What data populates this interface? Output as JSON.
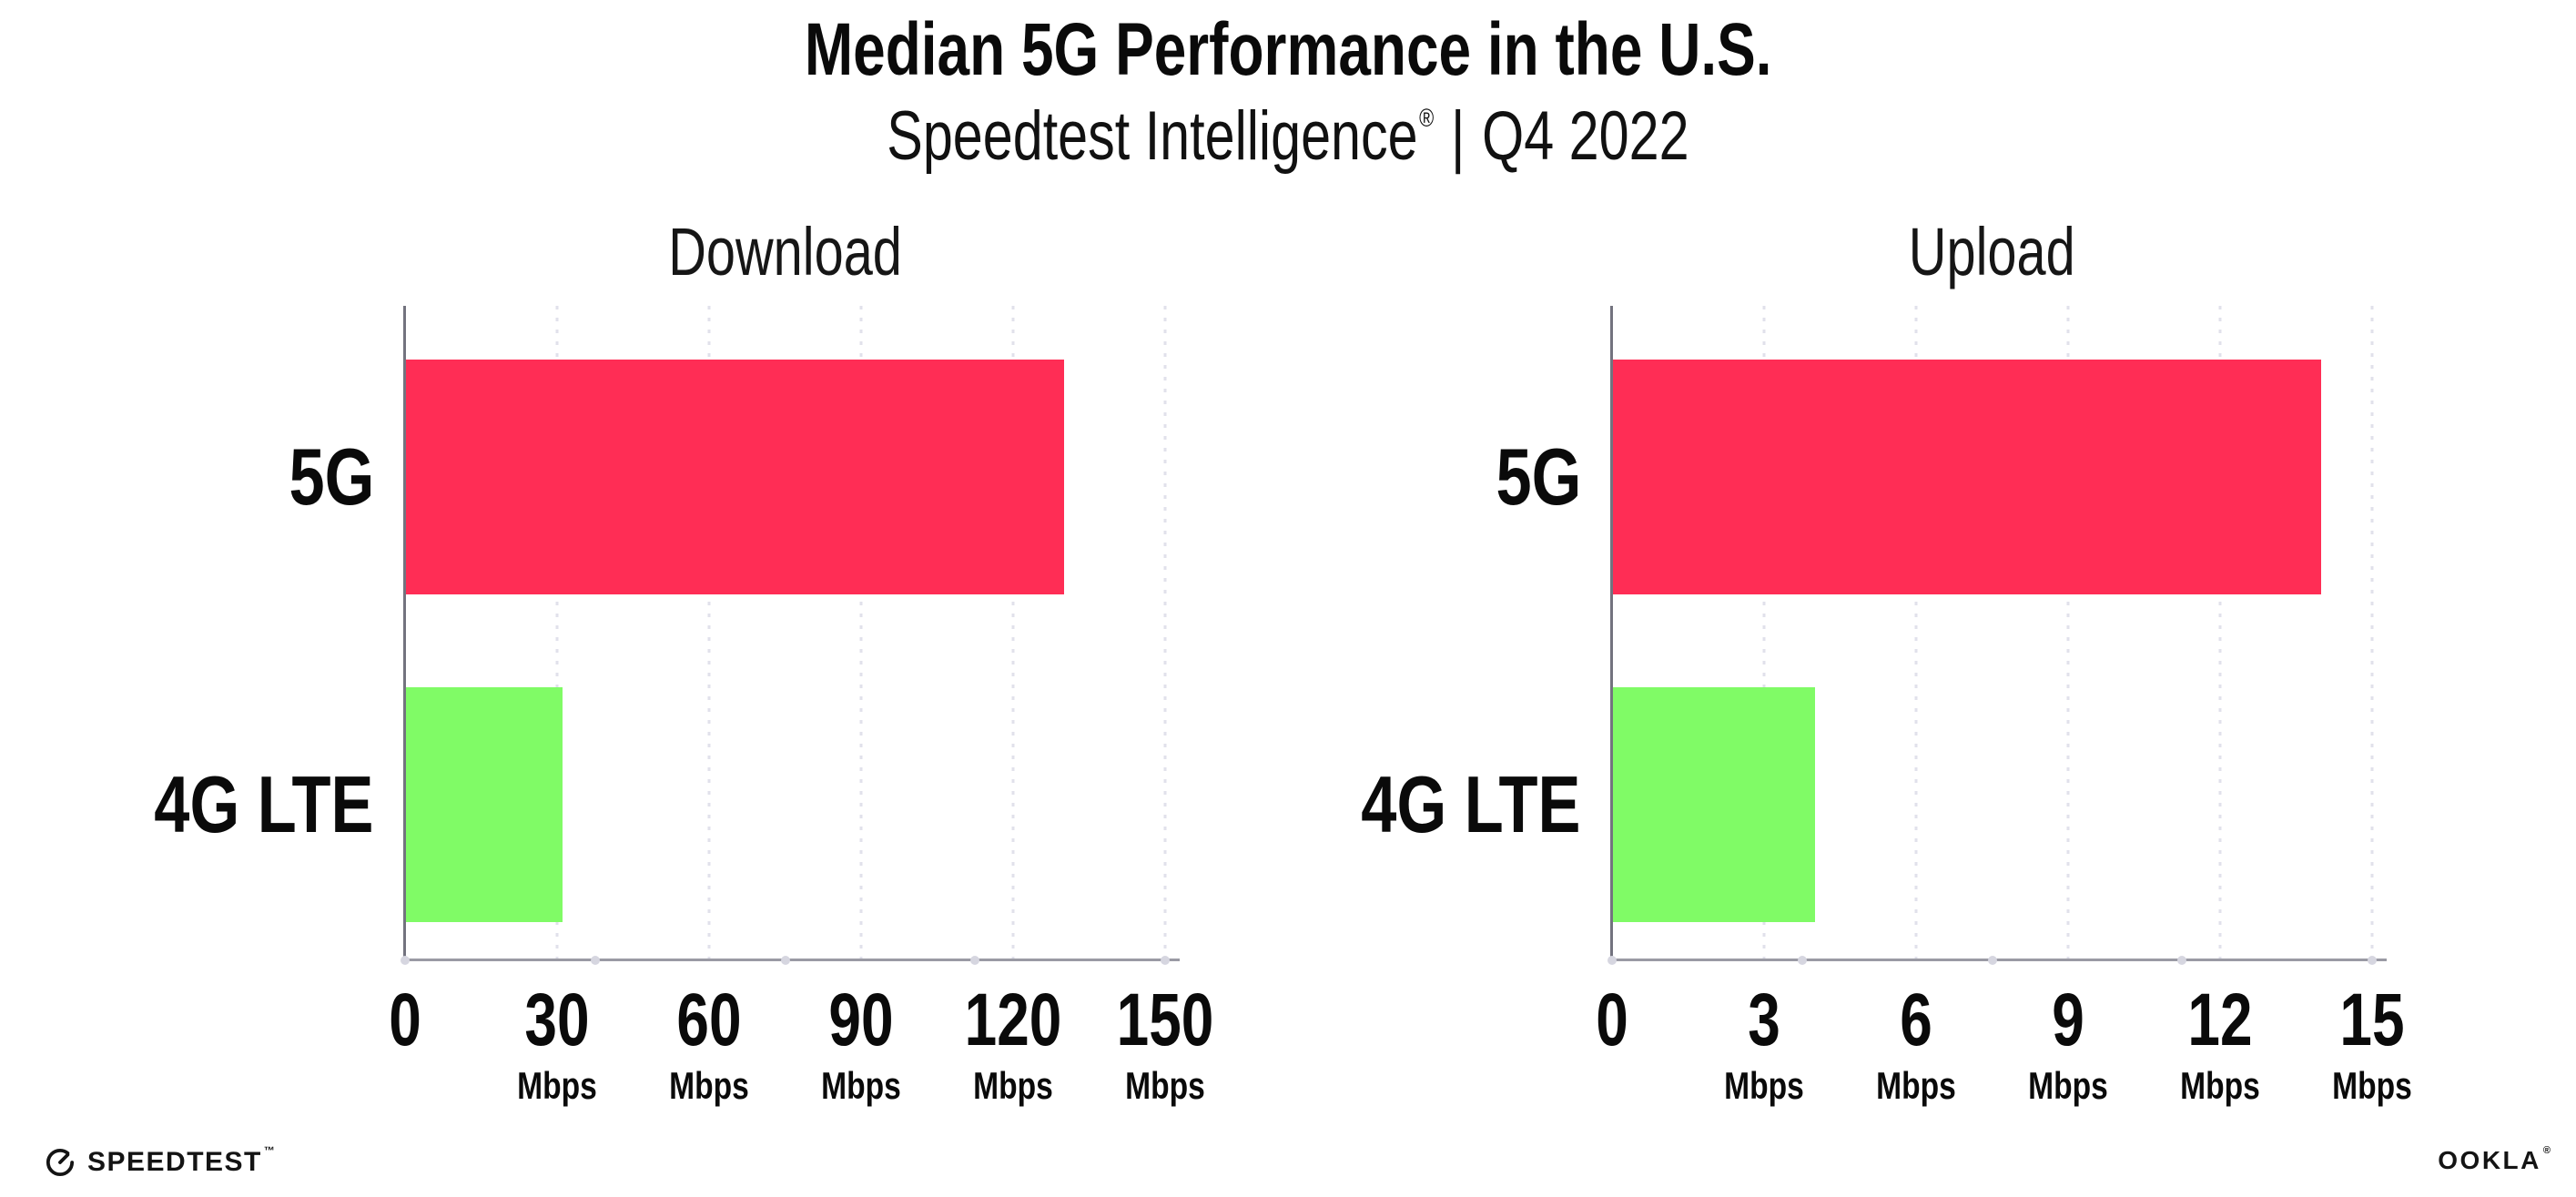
{
  "header": {
    "title": "Median 5G Performance in the U.S.",
    "subtitle_brand": "Speedtest Intelligence",
    "subtitle_reg": "®",
    "subtitle_separator": "|",
    "subtitle_period": "Q4 2022"
  },
  "chart_data": [
    {
      "type": "bar",
      "orientation": "horizontal",
      "title": "Download",
      "categories": [
        "5G",
        "4G LTE"
      ],
      "values": [
        130,
        31
      ],
      "unit": "Mbps",
      "xlim": [
        0,
        150
      ],
      "xticks": [
        0,
        30,
        60,
        90,
        120,
        150
      ],
      "bar_colors": [
        "#FF2D55",
        "#80FB66"
      ],
      "grid": "dotted-vertical",
      "legend": "none"
    },
    {
      "type": "bar",
      "orientation": "horizontal",
      "title": "Upload",
      "categories": [
        "5G",
        "4G LTE"
      ],
      "values": [
        14,
        4
      ],
      "unit": "Mbps",
      "xlim": [
        0,
        15
      ],
      "xticks": [
        0,
        3,
        6,
        9,
        12,
        15
      ],
      "bar_colors": [
        "#FF2D55",
        "#80FB66"
      ],
      "grid": "dotted-vertical",
      "legend": "none"
    }
  ],
  "footer": {
    "speedtest_label": "SPEEDTEST",
    "speedtest_tm": "™",
    "ookla_label": "OOKLA",
    "ookla_reg": "®"
  },
  "colors": {
    "bar_5g": "#FF2D55",
    "bar_4g_lte": "#80FB66",
    "gridline": "#E1E1EB",
    "axis_y": "#73737F",
    "axis_x": "#9A9AA4",
    "text": "#0D0D0D",
    "background": "#FFFFFF"
  }
}
